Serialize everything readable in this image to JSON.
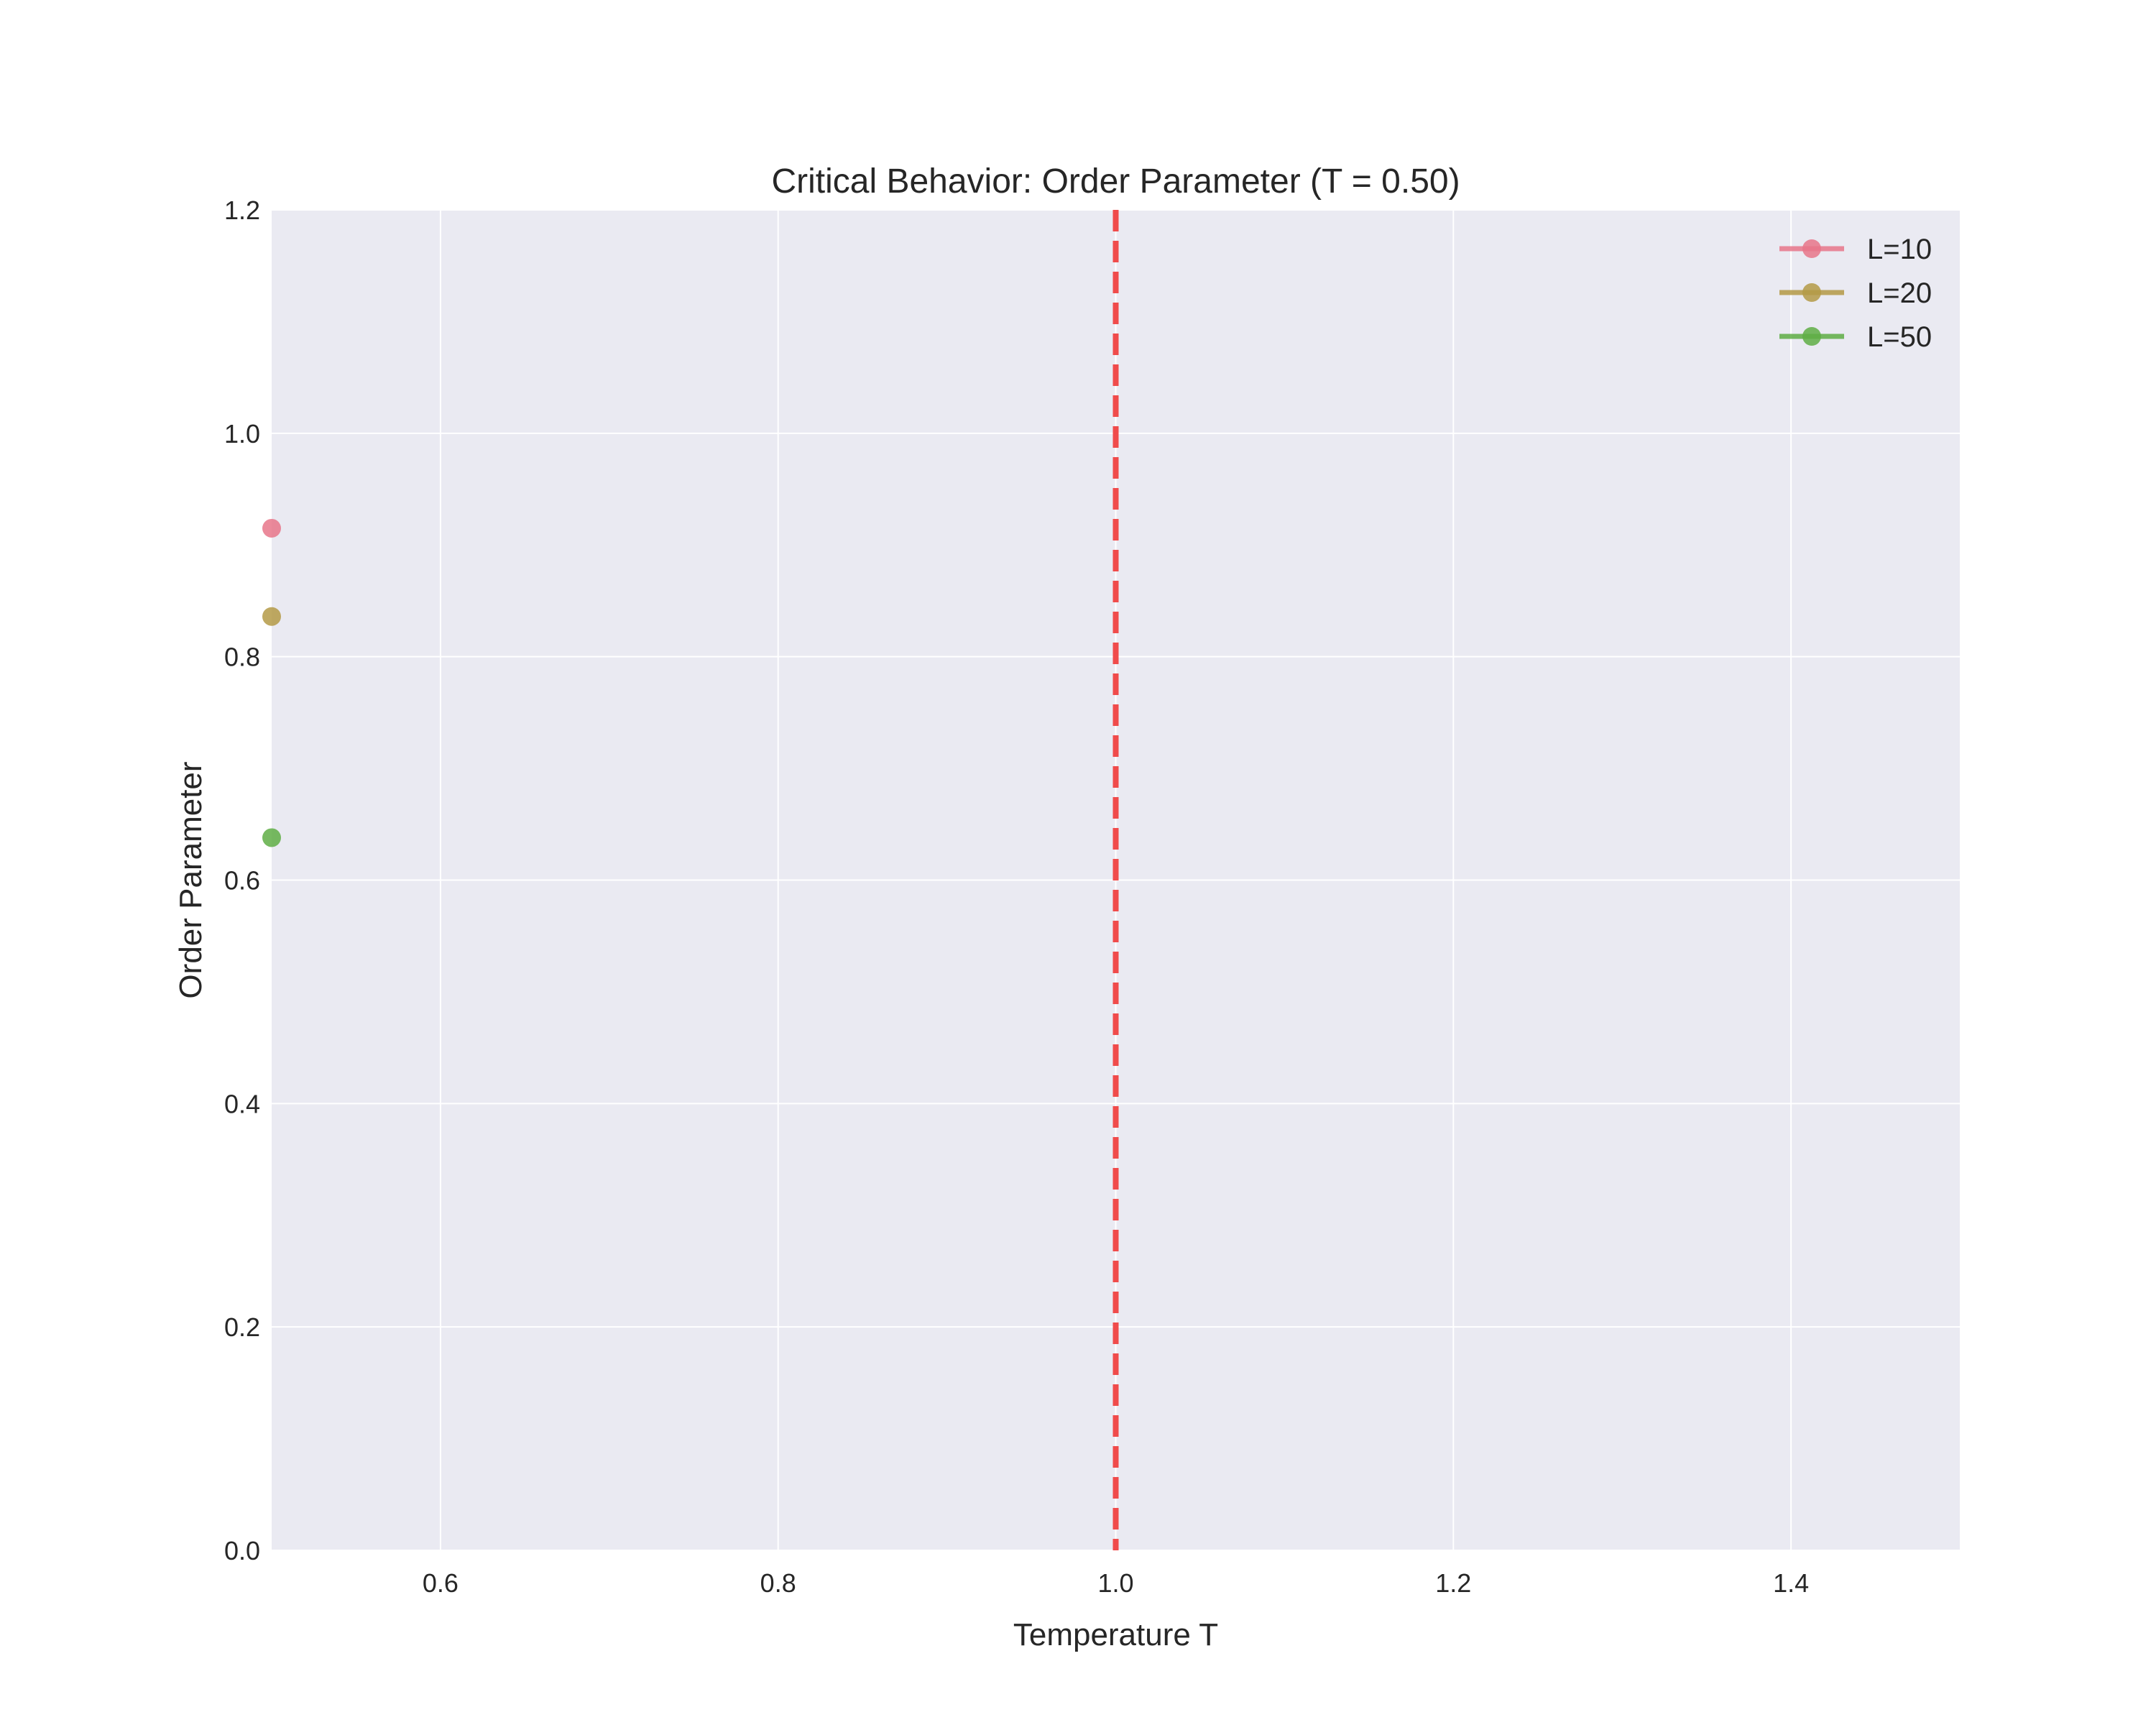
{
  "chart_data": {
    "type": "line",
    "title": "Critical Behavior: Order Parameter (T = 0.50)",
    "xlabel": "Temperature T",
    "ylabel": "Order Parameter",
    "xlim": [
      0.5,
      1.5
    ],
    "ylim": [
      0.0,
      1.2
    ],
    "x_ticks": [
      "0.6",
      "0.8",
      "1.0",
      "1.2",
      "1.4"
    ],
    "x_tick_values": [
      0.6,
      0.8,
      1.0,
      1.2,
      1.4
    ],
    "y_ticks": [
      "0.0",
      "0.2",
      "0.4",
      "0.6",
      "0.8",
      "1.0",
      "1.2"
    ],
    "y_tick_values": [
      0.0,
      0.2,
      0.4,
      0.6,
      0.8,
      1.0,
      1.2
    ],
    "grid": true,
    "legend_position": "top-right",
    "reference_line": {
      "orientation": "vertical",
      "x": 1.0,
      "style": "dashed",
      "color": "#f04b4b"
    },
    "series": [
      {
        "name": "L=10",
        "color": "#e8768a",
        "x": [
          0.5
        ],
        "y": [
          0.915
        ]
      },
      {
        "name": "L=20",
        "color": "#b49a46",
        "x": [
          0.5
        ],
        "y": [
          0.836
        ]
      },
      {
        "name": "L=50",
        "color": "#5fae45",
        "x": [
          0.5
        ],
        "y": [
          0.638
        ]
      }
    ],
    "background_color": "#eaeaf2",
    "grid_color": "#ffffff"
  }
}
